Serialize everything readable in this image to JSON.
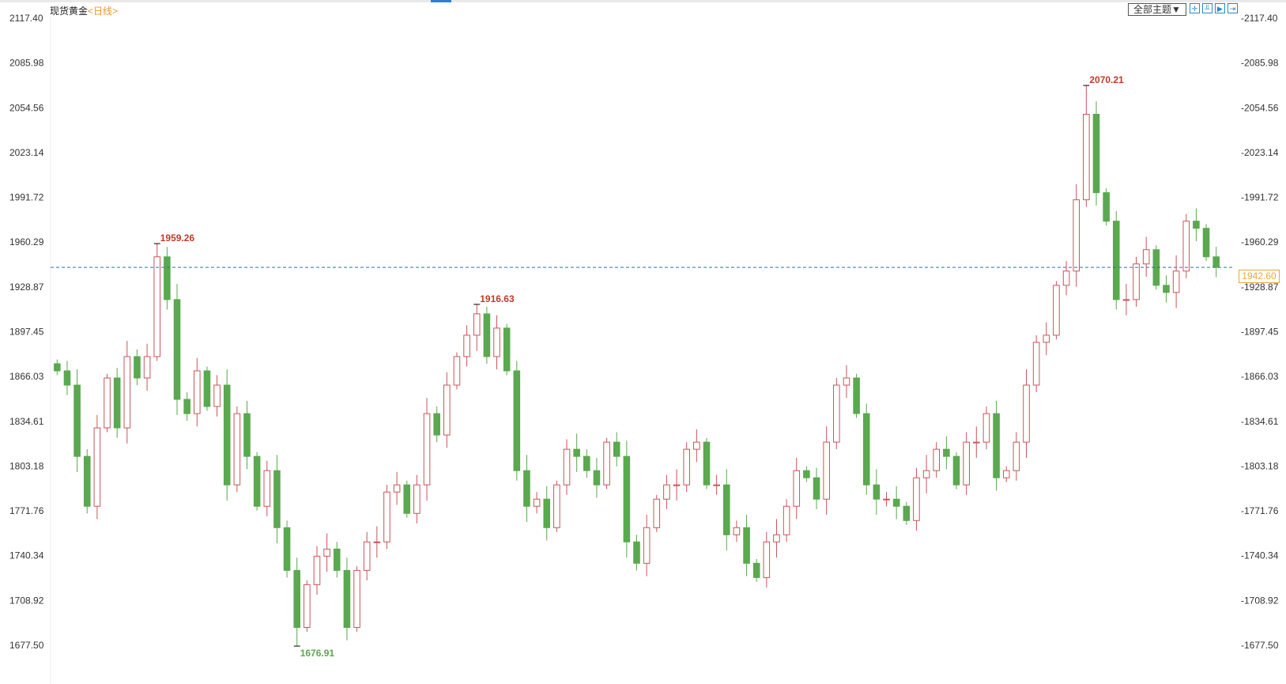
{
  "header": {
    "instrument": "现货黄金",
    "period_prefix": "<",
    "period": "日线",
    "period_suffix": ">",
    "theme_button": "全部主题▼",
    "tools": [
      "crosshair-icon",
      "zoom-in-icon",
      "play-icon",
      "jump-end-icon"
    ]
  },
  "colors": {
    "up": "#c9555a",
    "down": "#5aa84f",
    "current_line": "#2a6fb8",
    "current_box": "#e9a73a",
    "high_label": "#c0392b",
    "low_label": "#5aa84f"
  },
  "chart_data": {
    "type": "candlestick",
    "title": "现货黄金",
    "ylim": [
      1677.5,
      2117.4
    ],
    "y_ticks": [
      "2117.40",
      "2085.98",
      "2054.56",
      "2023.14",
      "1991.72",
      "1960.29",
      "1928.87",
      "1897.45",
      "1866.03",
      "1834.61",
      "1803.18",
      "1771.76",
      "1740.34",
      "1708.92",
      "1677.50"
    ],
    "current_price": "1942.60",
    "approx_close": [
      1870,
      1860,
      1810,
      1775,
      1830,
      1865,
      1830,
      1880,
      1865,
      1880,
      1950,
      1920,
      1850,
      1840,
      1870,
      1845,
      1860,
      1790,
      1840,
      1810,
      1775,
      1800,
      1760,
      1730,
      1690,
      1720,
      1740,
      1745,
      1730,
      1690,
      1730,
      1750,
      1750,
      1785,
      1790,
      1770,
      1790,
      1840,
      1825,
      1860,
      1880,
      1895,
      1910,
      1880,
      1900,
      1870,
      1800,
      1775,
      1780,
      1760,
      1790,
      1815,
      1810,
      1800,
      1790,
      1820,
      1810,
      1750,
      1735,
      1760,
      1780,
      1790,
      1790,
      1815,
      1820,
      1790,
      1790,
      1755,
      1760,
      1735,
      1725,
      1750,
      1755,
      1775,
      1800,
      1795,
      1780,
      1820,
      1860,
      1865,
      1840,
      1790,
      1780,
      1780,
      1775,
      1765,
      1795,
      1800,
      1815,
      1810,
      1790,
      1820,
      1820,
      1840,
      1795,
      1800,
      1820,
      1860,
      1890,
      1895,
      1930,
      1940,
      1990,
      2050,
      1995,
      1975,
      1920,
      1920,
      1945,
      1955,
      1930,
      1925,
      1940,
      1975,
      1970,
      1950,
      1942.6
    ],
    "annotations": [
      {
        "label": "1959.26",
        "value": 1959.26,
        "candle": 10,
        "kind": "high"
      },
      {
        "label": "1676.91",
        "value": 1676.91,
        "candle": 24,
        "kind": "low"
      },
      {
        "label": "1916.63",
        "value": 1916.63,
        "candle": 42,
        "kind": "high"
      },
      {
        "label": "2070.21",
        "value": 2070.21,
        "candle": 103,
        "kind": "high"
      }
    ]
  }
}
